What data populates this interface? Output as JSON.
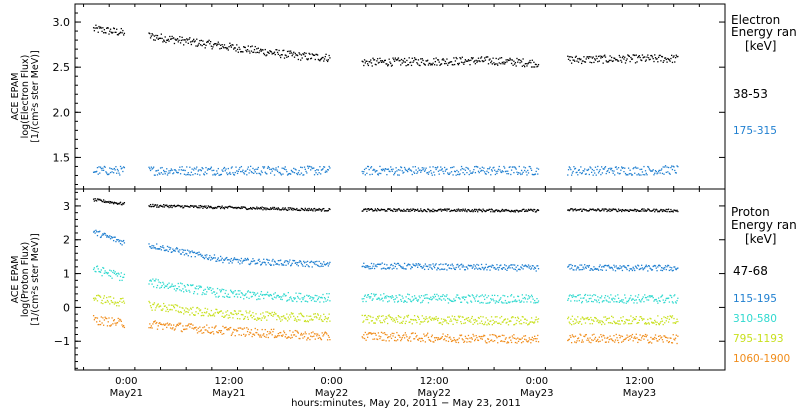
{
  "chart_data": [
    {
      "type": "scatter",
      "name": "electron-panel",
      "ylabel_lines": [
        "ACE EPAM",
        "log(Electron Flux)",
        "[1/(cm²s ster MeV)]"
      ],
      "ylim": [
        1.15,
        3.2
      ],
      "yticks": [
        1.5,
        2.0,
        2.5,
        3.0
      ],
      "ytick_labels": [
        "1.5",
        "2.0",
        "2.5",
        "3.0"
      ],
      "legend_title": [
        "Electron",
        "Energy ran",
        "[keV]"
      ],
      "series": [
        {
          "name": "38-53",
          "color": "#000000",
          "points": [
            [
              -3.9,
              2.93
            ],
            [
              -0.5,
              2.89
            ],
            [
              3.5,
              2.84
            ],
            [
              8,
              2.78
            ],
            [
              12,
              2.73
            ],
            [
              16,
              2.68
            ],
            [
              20,
              2.63
            ],
            [
              23.8,
              2.61
            ],
            [
              27.5,
              2.56
            ],
            [
              36,
              2.57
            ],
            [
              42,
              2.58
            ],
            [
              48,
              2.55
            ],
            [
              52,
              2.59
            ],
            [
              60,
              2.6
            ],
            [
              64.5,
              2.6
            ]
          ]
        },
        {
          "name": "175-315",
          "color": "#1f7fd0",
          "points": [
            [
              -3.9,
              1.36
            ],
            [
              -0.5,
              1.36
            ],
            [
              3.5,
              1.36
            ],
            [
              12,
              1.36
            ],
            [
              20,
              1.36
            ],
            [
              23.8,
              1.36
            ],
            [
              27.5,
              1.36
            ],
            [
              36,
              1.36
            ],
            [
              48,
              1.36
            ],
            [
              52,
              1.36
            ],
            [
              60,
              1.36
            ],
            [
              64.5,
              1.37
            ]
          ]
        }
      ]
    },
    {
      "type": "scatter",
      "name": "proton-panel",
      "ylabel_lines": [
        "ACE EPAM",
        "log(Proton Flux)",
        "[1/(cm²s ster MeV)]"
      ],
      "ylim": [
        -1.85,
        3.5
      ],
      "yticks": [
        -1,
        0,
        1,
        2,
        3
      ],
      "ytick_labels": [
        "−1",
        "0",
        "1",
        "2",
        "3"
      ],
      "legend_title": [
        "Proton",
        "Energy ran",
        "[keV]"
      ],
      "series": [
        {
          "name": "47-68",
          "color": "#000000",
          "points": [
            [
              -3.9,
              3.2
            ],
            [
              -0.5,
              3.08
            ],
            [
              3.5,
              3.02
            ],
            [
              10,
              2.98
            ],
            [
              20,
              2.92
            ],
            [
              23.8,
              2.9
            ],
            [
              27.5,
              2.9
            ],
            [
              36,
              2.89
            ],
            [
              48,
              2.88
            ],
            [
              52,
              2.9
            ],
            [
              60,
              2.89
            ],
            [
              64.5,
              2.88
            ]
          ]
        },
        {
          "name": "115-195",
          "color": "#1f7fd0",
          "points": [
            [
              -3.9,
              2.25
            ],
            [
              -0.5,
              1.95
            ],
            [
              3.5,
              1.82
            ],
            [
              8,
              1.58
            ],
            [
              12,
              1.4
            ],
            [
              20,
              1.32
            ],
            [
              23.8,
              1.28
            ],
            [
              27.5,
              1.25
            ],
            [
              36,
              1.22
            ],
            [
              48,
              1.18
            ],
            [
              52,
              1.2
            ],
            [
              60,
              1.18
            ],
            [
              64.5,
              1.18
            ]
          ]
        },
        {
          "name": "310-580",
          "color": "#2fd9cf",
          "points": [
            [
              -3.9,
              1.15
            ],
            [
              -0.5,
              0.92
            ],
            [
              3.5,
              0.72
            ],
            [
              8,
              0.55
            ],
            [
              12,
              0.4
            ],
            [
              20,
              0.32
            ],
            [
              23.8,
              0.3
            ],
            [
              27.5,
              0.3
            ],
            [
              36,
              0.28
            ],
            [
              48,
              0.26
            ],
            [
              52,
              0.28
            ],
            [
              60,
              0.27
            ],
            [
              64.5,
              0.26
            ]
          ]
        },
        {
          "name": "795-1193",
          "color": "#c8e01e",
          "points": [
            [
              -3.9,
              0.3
            ],
            [
              -0.5,
              0.16
            ],
            [
              3.5,
              0.05
            ],
            [
              8,
              -0.1
            ],
            [
              12,
              -0.2
            ],
            [
              20,
              -0.28
            ],
            [
              23.8,
              -0.3
            ],
            [
              27.5,
              -0.32
            ],
            [
              36,
              -0.36
            ],
            [
              48,
              -0.38
            ],
            [
              52,
              -0.36
            ],
            [
              60,
              -0.36
            ],
            [
              64.5,
              -0.36
            ]
          ]
        },
        {
          "name": "1060-1900",
          "color": "#f08c1a",
          "points": [
            [
              -3.9,
              -0.35
            ],
            [
              -0.5,
              -0.45
            ],
            [
              3.5,
              -0.5
            ],
            [
              8,
              -0.6
            ],
            [
              12,
              -0.68
            ],
            [
              20,
              -0.8
            ],
            [
              23.8,
              -0.85
            ],
            [
              27.5,
              -0.82
            ],
            [
              36,
              -0.88
            ],
            [
              48,
              -0.92
            ],
            [
              52,
              -0.9
            ],
            [
              60,
              -0.9
            ],
            [
              64.5,
              -0.92
            ]
          ]
        }
      ]
    }
  ],
  "time_axis": {
    "range_hours": [
      -6,
      70
    ],
    "data_gaps_hours": [
      [
        -0.3,
        2.5
      ],
      [
        23.8,
        27.5
      ],
      [
        48.2,
        51.5
      ]
    ],
    "ticks": [
      {
        "hours": 0,
        "time": "0:00",
        "date": "May21"
      },
      {
        "hours": 12,
        "time": "12:00",
        "date": "May21"
      },
      {
        "hours": 24,
        "time": "0:00",
        "date": "May22"
      },
      {
        "hours": 36,
        "time": "12:00",
        "date": "May22"
      },
      {
        "hours": 48,
        "time": "0:00",
        "date": "May23"
      },
      {
        "hours": 60,
        "time": "12:00",
        "date": "May23"
      }
    ],
    "xlabel": "hours:minutes, May 20, 2011 − May 23, 2011"
  }
}
